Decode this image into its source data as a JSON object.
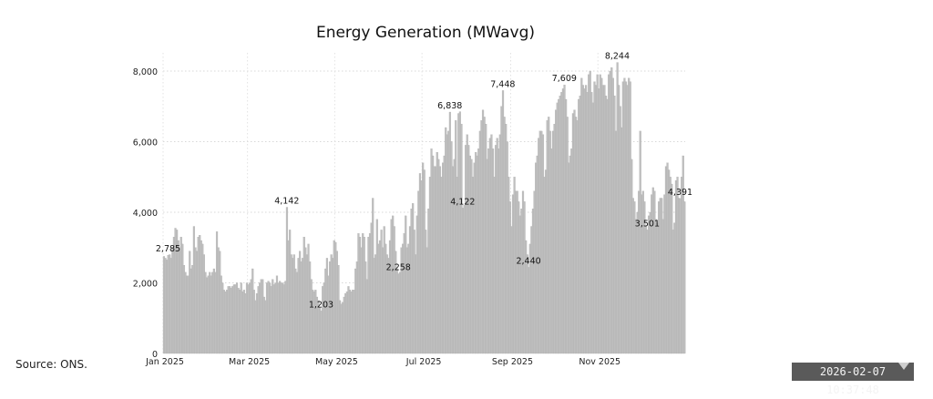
{
  "chart_data": {
    "type": "bar",
    "title": "Energy Generation (MWavg)",
    "xlabel": "",
    "ylabel": "",
    "ylim": [
      0,
      8000
    ],
    "yticks": [
      {
        "value": 0,
        "label": "0"
      },
      {
        "value": 2000,
        "label": "2,000"
      },
      {
        "value": 4000,
        "label": "4,000"
      },
      {
        "value": 6000,
        "label": "6,000"
      },
      {
        "value": 8000,
        "label": "8,000"
      }
    ],
    "xticks": [
      {
        "date": "2025-01-01",
        "label": "Jan 2025"
      },
      {
        "date": "2025-03-01",
        "label": "Mar 2025"
      },
      {
        "date": "2025-05-01",
        "label": "May 2025"
      },
      {
        "date": "2025-07-01",
        "label": "Jul 2025"
      },
      {
        "date": "2025-09-01",
        "label": "Sep 2025"
      },
      {
        "date": "2025-11-01",
        "label": "Nov 2025"
      }
    ],
    "xlim": [
      "2025-01-01",
      "2025-12-31"
    ],
    "grid": true,
    "bar_color": "#bfbfbf",
    "daily_values_by_month": [
      {
        "month": "2025-01",
        "values": [
          2750,
          2700,
          2650,
          2785,
          2800,
          2700,
          3000,
          3300,
          3550,
          3500,
          3200,
          3000,
          3300,
          3100,
          2500,
          2300,
          2200,
          2200,
          2900,
          2400,
          2500,
          3600,
          3000,
          2900,
          3300,
          3350,
          3200,
          3100,
          2800,
          2300,
          2150
        ]
      },
      {
        "month": "2025-02",
        "values": [
          2200,
          2300,
          2200,
          2300,
          2400,
          2300,
          3450,
          3000,
          2900,
          2200,
          2000,
          1800,
          1750,
          1800,
          1900,
          1900,
          1850,
          1900,
          1950,
          1950,
          2000,
          1850,
          1800,
          2000,
          1750,
          1800,
          1700,
          2000
        ]
      },
      {
        "month": "2025-03",
        "values": [
          1950,
          2000,
          2100,
          2400,
          1800,
          1500,
          1700,
          1900,
          2000,
          2100,
          2100,
          1600,
          1500,
          2000,
          2050,
          2000,
          1900,
          2100,
          1950,
          2000,
          2200,
          2000,
          2050,
          2000,
          2000,
          1950,
          2050,
          4142,
          3200,
          3500,
          2800
        ]
      },
      {
        "month": "2025-04",
        "values": [
          2700,
          2800,
          2400,
          2300,
          2700,
          2900,
          2600,
          2700,
          3300,
          3000,
          2800,
          3100,
          2600,
          2100,
          1800,
          1750,
          1800,
          1600,
          1500,
          1300,
          1203,
          1900,
          2000,
          2400,
          2700,
          2200,
          2600,
          2800,
          2700,
          3200
        ]
      },
      {
        "month": "2025-05",
        "values": [
          3150,
          2900,
          2500,
          1500,
          1400,
          1450,
          1600,
          1700,
          1750,
          1900,
          1800,
          1750,
          1800,
          1800,
          2400,
          2600,
          3400,
          3300,
          3000,
          3400,
          3300,
          2600,
          2100,
          3300,
          3400,
          3700,
          4400,
          2700,
          2800,
          3800,
          3100
        ]
      },
      {
        "month": "2025-06",
        "values": [
          3200,
          3500,
          3000,
          3600,
          3100,
          2800,
          2700,
          3200,
          3800,
          3900,
          3600,
          2900,
          2400,
          2258,
          2300,
          3000,
          3100,
          3400,
          3900,
          3000,
          3100,
          3600,
          4100,
          4250,
          3500,
          2800,
          3900,
          4600,
          5100,
          4900
        ]
      },
      {
        "month": "2025-07",
        "values": [
          5400,
          5200,
          3500,
          3000,
          4100,
          5000,
          5800,
          5600,
          5300,
          5300,
          5700,
          5500,
          5300,
          5000,
          5400,
          5600,
          6400,
          6200,
          6300,
          6838,
          6000,
          5300,
          5500,
          6600,
          5000,
          6800,
          6850,
          6500,
          4122,
          4200,
          5900
        ]
      },
      {
        "month": "2025-08",
        "values": [
          6200,
          5900,
          5600,
          5500,
          5000,
          5400,
          5700,
          5600,
          5800,
          6300,
          6600,
          6900,
          6700,
          6500,
          5500,
          5800,
          6100,
          6200,
          5800,
          5000,
          5900,
          6100,
          5800,
          6200,
          7000,
          7448,
          6700,
          6500,
          6000,
          5000,
          4300
        ]
      },
      {
        "month": "2025-09",
        "values": [
          3600,
          4500,
          5000,
          4600,
          4600,
          4300,
          3900,
          4100,
          4600,
          4300,
          3200,
          2800,
          2440,
          3100,
          3600,
          4100,
          4600,
          5400,
          5600,
          6100,
          6300,
          6300,
          6200,
          5000,
          5200,
          6600,
          6700,
          6300,
          5800,
          6300
        ]
      },
      {
        "month": "2025-10",
        "values": [
          6500,
          6900,
          7100,
          7200,
          7300,
          7400,
          7500,
          7609,
          7200,
          6700,
          5400,
          5600,
          5800,
          6800,
          6900,
          6700,
          6600,
          7200,
          7300,
          7800,
          7600,
          7500,
          7600,
          7400,
          7900,
          8000,
          7400,
          7100,
          7700,
          7600,
          7900
        ]
      },
      {
        "month": "2025-11",
        "values": [
          7500,
          7900,
          7800,
          7600,
          7600,
          7300,
          7200,
          7900,
          8000,
          8100,
          7800,
          7300,
          6300,
          8244,
          7600,
          7000,
          6400,
          7700,
          7800,
          7700,
          7600,
          7800,
          7700,
          5500,
          4400,
          4300,
          3800,
          4000,
          4600,
          6300
        ]
      },
      {
        "month": "2025-12",
        "values": [
          4500,
          4600,
          4300,
          3600,
          3501,
          3900,
          4000,
          4500,
          4700,
          4600,
          3800,
          3700,
          4300,
          4400,
          4400,
          3800,
          4500,
          5300,
          5400,
          5200,
          5000,
          4800,
          3500,
          3700,
          4900,
          5000,
          4400,
          4391,
          5000,
          5600,
          4300
        ]
      }
    ],
    "annotations": [
      {
        "date": "2025-01-04",
        "label": "2,785"
      },
      {
        "date": "2025-03-28",
        "label": "4,142"
      },
      {
        "date": "2025-04-21",
        "label": "1,203"
      },
      {
        "date": "2025-06-14",
        "label": "2,258"
      },
      {
        "date": "2025-07-20",
        "label": "6,838"
      },
      {
        "date": "2025-07-29",
        "label": "4,122"
      },
      {
        "date": "2025-08-26",
        "label": "7,448"
      },
      {
        "date": "2025-09-13",
        "label": "2,440"
      },
      {
        "date": "2025-10-08",
        "label": "7,609"
      },
      {
        "date": "2025-11-14",
        "label": "8,244"
      },
      {
        "date": "2025-12-05",
        "label": "3,501"
      },
      {
        "date": "2025-12-28",
        "label": "4,391"
      }
    ]
  },
  "footer": {
    "source": "Source: ONS.",
    "timestamp": "2026-02-07 10:37:48"
  }
}
